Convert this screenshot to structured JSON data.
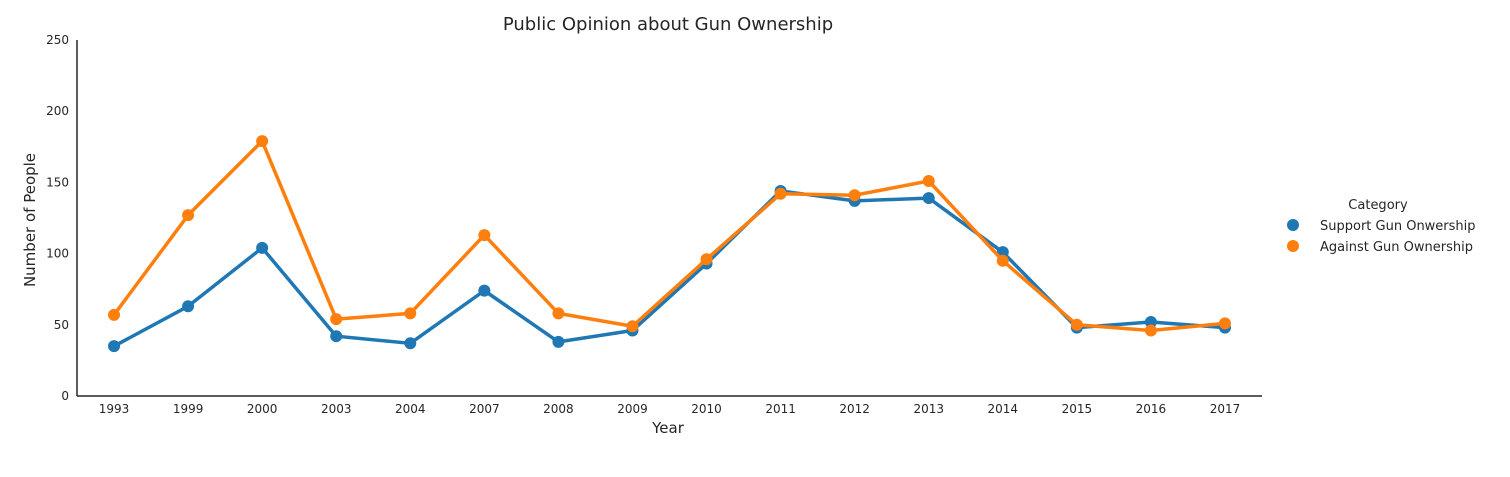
{
  "chart_data": {
    "type": "line",
    "title": "Public Opinion about Gun Ownership",
    "xlabel": "Year",
    "ylabel": "Number of People",
    "categories": [
      "1993",
      "1999",
      "2000",
      "2003",
      "2004",
      "2007",
      "2008",
      "2009",
      "2010",
      "2011",
      "2012",
      "2013",
      "2014",
      "2015",
      "2016",
      "2017"
    ],
    "ylim": [
      0,
      250
    ],
    "yticks": [
      0,
      50,
      100,
      150,
      200,
      250
    ],
    "grid": false,
    "legend": {
      "title": "Category",
      "placement": "right"
    },
    "series": [
      {
        "name": "Support Gun Onwership",
        "color": "#1f77b4",
        "values": [
          35,
          63,
          104,
          42,
          37,
          74,
          38,
          46,
          93,
          144,
          137,
          139,
          101,
          48,
          52,
          48
        ]
      },
      {
        "name": "Against Gun Ownership",
        "color": "#ff7f0e",
        "values": [
          57,
          127,
          179,
          54,
          58,
          113,
          58,
          49,
          96,
          142,
          141,
          151,
          95,
          50,
          46,
          51
        ]
      }
    ]
  }
}
